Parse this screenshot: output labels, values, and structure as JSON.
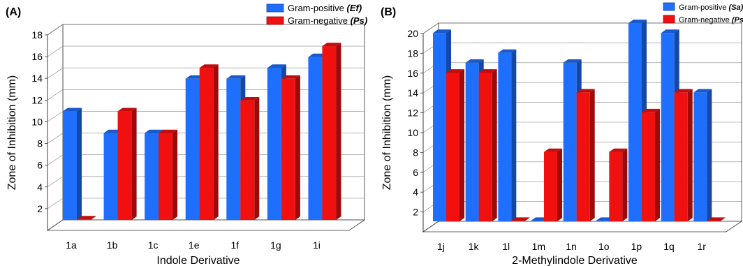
{
  "chart_data": [
    {
      "type": "bar",
      "panel_label": "(A)",
      "xlabel": "Indole Derivative",
      "ylabel": "Zone of Inhibition (mm)",
      "categories": [
        "1a",
        "1b",
        "1c",
        "1e",
        "1f",
        "1g",
        "1i"
      ],
      "ylim": [
        0,
        18
      ],
      "yticks": [
        2,
        4,
        6,
        8,
        10,
        12,
        14,
        16,
        18
      ],
      "series": [
        {
          "name": "Gram-positive ",
          "name_em": "(Ef)",
          "color": "#1f6fff",
          "values": [
            10,
            8,
            8,
            13,
            13,
            14,
            15
          ]
        },
        {
          "name": "Gram-negative ",
          "name_em": "(Ps)",
          "color": "#f01010",
          "values": [
            0,
            10,
            8,
            14,
            11,
            13,
            16
          ]
        }
      ],
      "grid": true,
      "legend": "top-right"
    },
    {
      "type": "bar",
      "panel_label": "(B)",
      "xlabel": "2-Methylindole Derivative",
      "ylabel": "Zone of Inhibition (mm)",
      "categories": [
        "1j",
        "1k",
        "1l",
        "1m",
        "1n",
        "1o",
        "1p",
        "1q",
        "1r"
      ],
      "ylim": [
        0,
        20
      ],
      "yticks": [
        2,
        4,
        6,
        8,
        10,
        12,
        14,
        16,
        18,
        20
      ],
      "series": [
        {
          "name": "Gram-positive ",
          "name_em": "(Sa)",
          "color": "#1f6fff",
          "values": [
            19,
            16,
            17,
            0,
            16,
            0,
            20,
            19,
            13
          ]
        },
        {
          "name": "Gram-negative ",
          "name_em": "(Ps)",
          "color": "#f01010",
          "values": [
            15,
            15,
            0,
            7,
            13,
            7,
            11,
            13,
            0
          ]
        }
      ],
      "grid": true,
      "legend": "top-right"
    }
  ]
}
